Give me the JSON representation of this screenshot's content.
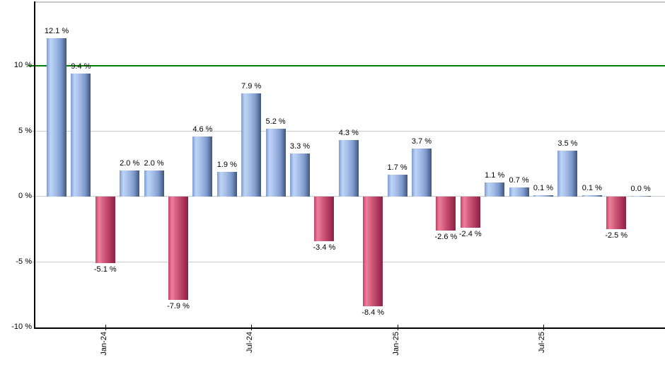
{
  "chart_data": {
    "type": "bar",
    "title": "",
    "values": [
      12.1,
      9.4,
      -5.1,
      2.0,
      2.0,
      -7.9,
      4.6,
      1.9,
      7.9,
      5.2,
      3.3,
      -3.4,
      4.3,
      -8.4,
      1.7,
      3.7,
      -2.6,
      -2.4,
      1.1,
      0.7,
      0.1,
      3.5,
      0.1,
      -2.5,
      0.0
    ],
    "value_suffix": " %",
    "x_tick_labels": [
      "Jan-24",
      "Jul-24",
      "Jan-25",
      "Jul-25"
    ],
    "x_tick_bar_indices": [
      2,
      8,
      14,
      20
    ],
    "y_tick_labels": [
      "10 %",
      "5 %",
      "0 %",
      "-5 %",
      "-10 %"
    ],
    "y_tick_values": [
      10,
      5,
      0,
      -5,
      -10
    ],
    "ylim": [
      -10,
      14.9
    ],
    "grid": true,
    "legend_position": "none",
    "reference_line": {
      "value": 10,
      "color": "#008000"
    },
    "colors": {
      "positive_gradient": [
        "#7e9bd0",
        "#bdd4f6",
        "#a9c2ea",
        "#7f9bce",
        "#3f567c"
      ],
      "negative_gradient": [
        "#c24367",
        "#ec7f9b",
        "#d65f80",
        "#b13a5f",
        "#8e2045"
      ],
      "gridline": "#cccccc",
      "axis": "#000000",
      "top_border": "#c9c9c9",
      "label_text": "#000000"
    }
  }
}
